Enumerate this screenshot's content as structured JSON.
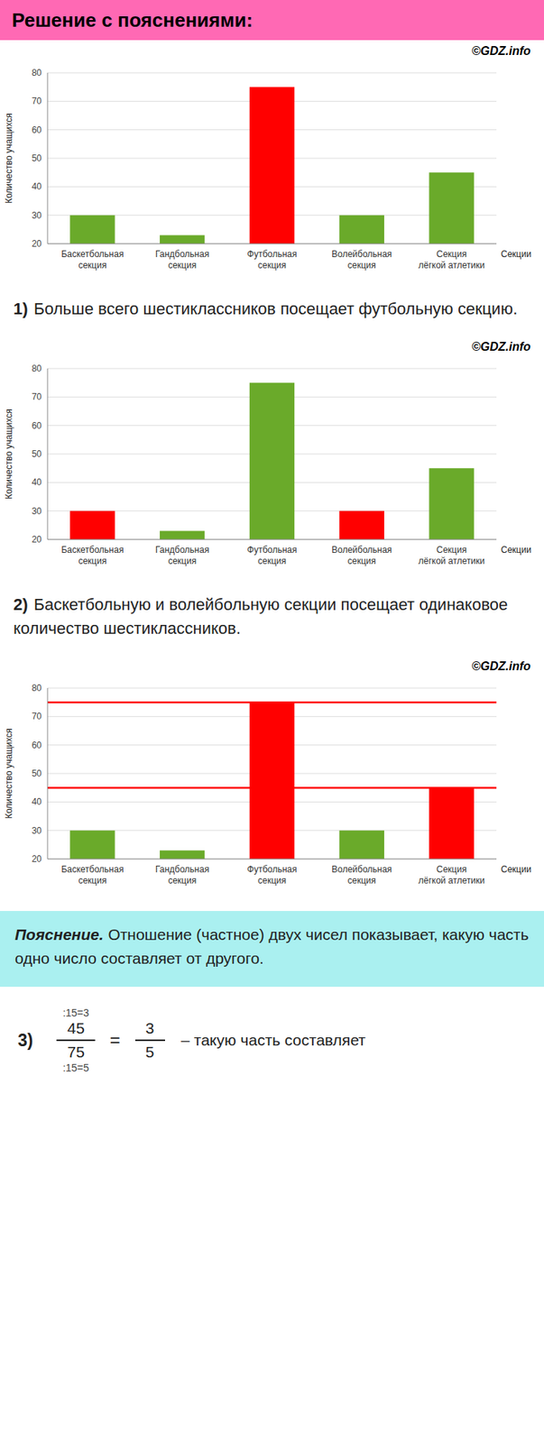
{
  "banner": "Решение с пояснениями:",
  "banner_color": "#FF69B4",
  "copyright": "©GDZ.info",
  "statements": [
    {
      "label": "1)",
      "text": "Больше всего шестиклассников посещает футбольную секцию."
    },
    {
      "label": "2)",
      "text": "Баскетбольную и волейбольную секции посещает одинаковое количество шестиклассников."
    }
  ],
  "explanation": {
    "background": "#aaf0f0",
    "lead": "Пояснение.",
    "text": "Отношение (частное) двух чисел показывает, какую часть одно число составляет от другого.",
    "formula_label": "3)",
    "annot_top": ":15=3",
    "numerator": "45",
    "denominator": "75",
    "annot_bot": ":15=5",
    "equals": "=",
    "result_num": "3",
    "result_den": "5",
    "dash_text": "– такую часть составляет"
  },
  "chart_data": [
    {
      "type": "bar",
      "categories": [
        "Баскетбольная\nсекция",
        "Гандбольная\nсекция",
        "Футбольная\nсекция",
        "Волейбольная\nсекция",
        "Секция\nлёгкой атлетики"
      ],
      "values": [
        30,
        23,
        75,
        30,
        45
      ],
      "colors": [
        "#6aaa2a",
        "#6aaa2a",
        "#ff0000",
        "#6aaa2a",
        "#6aaa2a"
      ],
      "xlabel": "Секции",
      "ylabel": "Количество учащихся",
      "ylim": [
        20,
        80
      ],
      "yticks": [
        20,
        30,
        40,
        50,
        60,
        70,
        80
      ],
      "grid": true
    },
    {
      "type": "bar",
      "categories": [
        "Баскетбольная\nсекция",
        "Гандбольная\nсекция",
        "Футбольная\nсекция",
        "Волейбольная\nсекция",
        "Секция\nлёгкой атлетики"
      ],
      "values": [
        30,
        23,
        75,
        30,
        45
      ],
      "colors": [
        "#ff0000",
        "#6aaa2a",
        "#6aaa2a",
        "#ff0000",
        "#6aaa2a"
      ],
      "xlabel": "Секции",
      "ylabel": "Количество учащихся",
      "ylim": [
        20,
        80
      ],
      "yticks": [
        20,
        30,
        40,
        50,
        60,
        70,
        80
      ],
      "grid": true
    },
    {
      "type": "bar",
      "categories": [
        "Баскетбольная\nсекция",
        "Гандбольная\nсекция",
        "Футбольная\nсекция",
        "Волейбольная\nсекция",
        "Секция\nлёгкой атлетики"
      ],
      "values": [
        30,
        23,
        75,
        30,
        45
      ],
      "colors": [
        "#6aaa2a",
        "#6aaa2a",
        "#ff0000",
        "#6aaa2a",
        "#ff0000"
      ],
      "xlabel": "Секции",
      "ylabel": "Количество учащихся",
      "ylim": [
        20,
        80
      ],
      "yticks": [
        20,
        30,
        40,
        50,
        60,
        70,
        80
      ],
      "grid": true,
      "hlines": [
        75,
        45
      ]
    }
  ]
}
